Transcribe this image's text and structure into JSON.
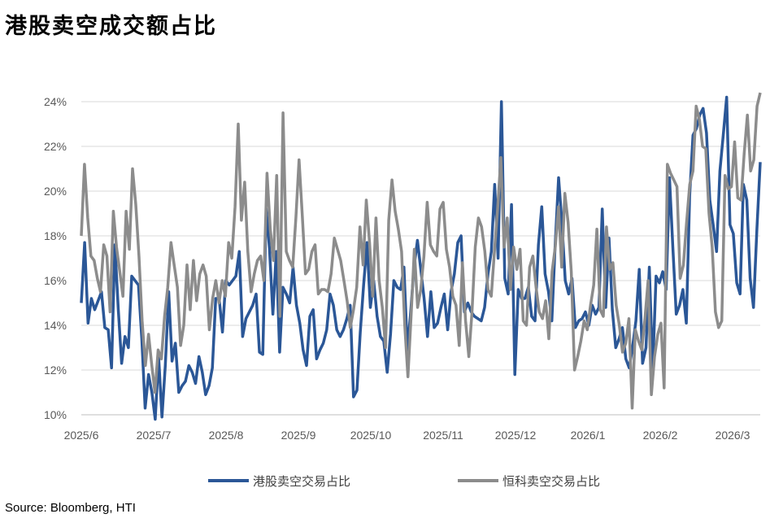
{
  "title": "港股卖空成交额占比",
  "source": "Source: Bloomberg, HTI",
  "chart_data": {
    "type": "line",
    "title": "港股卖空成交额占比",
    "xlabel": "",
    "ylabel": "",
    "ylim": [
      10,
      24
    ],
    "y_ticks": [
      10,
      12,
      14,
      16,
      18,
      20,
      22,
      24
    ],
    "y_tick_labels": [
      "10%",
      "12%",
      "14%",
      "16%",
      "18%",
      "20%",
      "22%",
      "24%"
    ],
    "x_tick_labels": [
      "2025/6",
      "2025/7",
      "2025/8",
      "2025/9",
      "2025/10",
      "2025/11",
      "2025/12",
      "2026/1",
      "2026/2",
      "2026/3"
    ],
    "grid": "horizontal",
    "legend": "bottom",
    "series": [
      {
        "name": "港股卖空交易占比",
        "color": "#2B5797",
        "values": [
          15.0,
          17.7,
          14.1,
          15.2,
          14.7,
          15.1,
          15.5,
          13.9,
          13.8,
          12.1,
          17.6,
          14.7,
          12.3,
          13.5,
          13.0,
          16.2,
          16.0,
          15.8,
          13.4,
          10.3,
          11.8,
          11.0,
          9.8,
          12.6,
          9.9,
          12.2,
          15.5,
          12.4,
          13.2,
          11.0,
          11.3,
          11.5,
          12.2,
          11.9,
          11.4,
          12.6,
          11.9,
          10.9,
          11.3,
          12.1,
          15.2,
          15.2,
          13.7,
          16.0,
          15.8,
          16.0,
          16.2,
          17.3,
          13.5,
          14.3,
          14.6,
          14.9,
          15.4,
          12.8,
          12.7,
          19.2,
          17.4,
          14.5,
          17.3,
          12.8,
          15.7,
          15.4,
          15.0,
          16.6,
          14.9,
          14.1,
          12.9,
          12.2,
          14.4,
          14.7,
          12.5,
          12.9,
          13.2,
          13.8,
          15.4,
          14.9,
          13.8,
          13.5,
          13.8,
          14.3,
          14.9,
          10.8,
          11.1,
          13.7,
          15.8,
          17.7,
          14.8,
          16.0,
          14.4,
          13.5,
          13.3,
          11.9,
          13.6,
          16.0,
          15.7,
          15.6,
          16.6,
          12.9,
          14.6,
          16.6,
          17.8,
          16.5,
          15.2,
          13.5,
          15.5,
          13.9,
          14.1,
          14.8,
          15.4,
          13.8,
          15.5,
          16.3,
          17.7,
          18.0,
          14.6,
          15.0,
          14.6,
          14.4,
          14.3,
          14.2,
          14.8,
          16.3,
          17.3,
          20.3,
          17.0,
          24.0,
          16.1,
          15.4,
          19.4,
          11.8,
          15.6,
          15.2,
          15.2,
          15.7,
          14.4,
          14.2,
          17.6,
          19.3,
          16.3,
          15.5,
          14.2,
          17.6,
          20.6,
          18.6,
          16.0,
          15.4,
          16.1,
          13.9,
          14.2,
          14.3,
          14.6,
          14.0,
          14.9,
          14.5,
          14.8,
          19.2,
          14.8,
          17.9,
          14.7,
          13.0,
          13.4,
          13.9,
          12.5,
          12.1,
          13.0,
          14.2,
          16.5,
          12.3,
          13.0,
          16.6,
          12.0,
          16.2,
          15.9,
          16.4,
          15.6,
          20.6,
          17.5,
          14.5,
          14.9,
          15.6,
          14.1,
          19.8,
          22.5,
          22.8,
          23.4,
          23.7,
          22.6,
          19.6,
          18.5,
          17.3,
          20.9,
          22.5,
          24.2,
          18.5,
          18.1,
          15.9,
          15.4,
          20.3,
          19.6,
          16.1,
          14.8,
          18.3,
          21.3
        ]
      },
      {
        "name": "恒科卖空交易占比",
        "color": "#8C8C8C",
        "values": [
          18.0,
          21.2,
          18.8,
          17.1,
          16.9,
          16.1,
          15.5,
          17.6,
          17.1,
          14.6,
          19.1,
          17.5,
          16.4,
          15.3,
          19.1,
          17.4,
          21.0,
          19.4,
          17.1,
          14.2,
          12.2,
          13.6,
          12.2,
          11.0,
          12.9,
          12.5,
          14.4,
          15.7,
          17.7,
          16.7,
          15.7,
          13.1,
          14.0,
          16.7,
          14.7,
          16.9,
          15.1,
          16.3,
          16.7,
          16.2,
          13.8,
          15.2,
          16.0,
          15.0,
          16.0,
          15.3,
          17.7,
          17.0,
          19.3,
          23.0,
          18.7,
          20.4,
          17.3,
          15.5,
          16.3,
          16.9,
          17.1,
          16.0,
          20.8,
          18.3,
          16.9,
          20.7,
          14.4,
          23.5,
          17.3,
          16.9,
          16.6,
          18.8,
          21.4,
          18.9,
          16.3,
          16.5,
          17.3,
          17.6,
          15.4,
          15.6,
          15.6,
          15.5,
          16.3,
          17.9,
          17.4,
          16.9,
          16.0,
          15.1,
          13.9,
          14.7,
          15.7,
          18.4,
          16.7,
          19.6,
          17.7,
          15.3,
          18.8,
          16.0,
          14.8,
          13.0,
          18.7,
          20.5,
          19.1,
          18.3,
          17.3,
          14.0,
          11.7,
          14.5,
          17.4,
          14.8,
          15.6,
          17.1,
          19.5,
          17.6,
          17.3,
          17.1,
          19.2,
          19.5,
          17.4,
          16.6,
          15.3,
          14.9,
          13.1,
          16.8,
          14.2,
          12.6,
          14.6,
          17.5,
          18.8,
          18.4,
          17.3,
          15.6,
          15.3,
          17.3,
          19.2,
          21.5,
          17.5,
          18.8,
          15.6,
          17.5,
          16.5,
          17.4,
          14.2,
          14.0,
          16.6,
          17.1,
          15.7,
          14.6,
          14.3,
          15.1,
          13.4,
          16.4,
          17.5,
          19.3,
          16.6,
          19.9,
          18.6,
          16.4,
          12.0,
          12.6,
          13.3,
          14.2,
          13.8,
          14.9,
          15.8,
          18.3,
          14.7,
          14.4,
          18.4,
          16.5,
          16.8,
          14.9,
          14.0,
          12.8,
          13.2,
          14.3,
          10.3,
          13.8,
          13.3,
          12.9,
          14.3,
          16.0,
          10.9,
          12.6,
          13.6,
          14.1,
          11.2,
          21.2,
          20.8,
          20.5,
          20.2,
          16.1,
          16.7,
          18.6,
          20.3,
          20.9,
          23.8,
          23.2,
          22.0,
          21.9,
          19.0,
          17.5,
          14.6,
          13.9,
          14.2,
          20.7,
          20.1,
          20.2,
          22.2,
          19.7,
          19.6,
          21.7,
          23.4,
          20.9,
          21.4,
          23.8,
          24.4
        ]
      }
    ]
  }
}
